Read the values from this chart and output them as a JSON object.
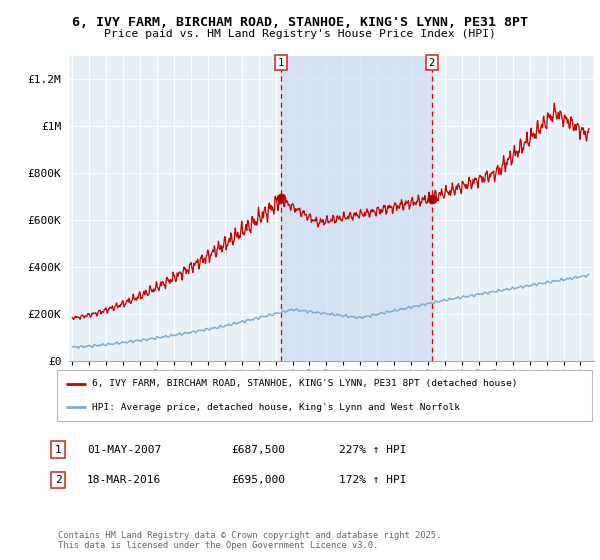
{
  "title": "6, IVY FARM, BIRCHAM ROAD, STANHOE, KING'S LYNN, PE31 8PT",
  "subtitle": "Price paid vs. HM Land Registry's House Price Index (HPI)",
  "background_color": "#ffffff",
  "plot_bg_color": "#e8f0f8",
  "grid_color": "#ffffff",
  "red_line_color": "#cc0000",
  "blue_line_color": "#7faacc",
  "dash_color": "#dd0000",
  "span_color": "#ccdcee",
  "marker1_x": 2007.33,
  "marker2_x": 2016.22,
  "marker1_date": "01-MAY-2007",
  "marker1_price": "£687,500",
  "marker1_hpi": "227% ↑ HPI",
  "marker2_date": "18-MAR-2016",
  "marker2_price": "£695,000",
  "marker2_hpi": "172% ↑ HPI",
  "legend_line1": "6, IVY FARM, BIRCHAM ROAD, STANHOE, KING'S LYNN, PE31 8PT (detached house)",
  "legend_line2": "HPI: Average price, detached house, King's Lynn and West Norfolk",
  "footer": "Contains HM Land Registry data © Crown copyright and database right 2025.\nThis data is licensed under the Open Government Licence v3.0.",
  "ylim": [
    0,
    1300000
  ],
  "yticks": [
    0,
    200000,
    400000,
    600000,
    800000,
    1000000,
    1200000
  ],
  "ytick_labels": [
    "£0",
    "£200K",
    "£400K",
    "£600K",
    "£800K",
    "£1M",
    "£1.2M"
  ],
  "xmin": 1994.8,
  "xmax": 2025.8
}
